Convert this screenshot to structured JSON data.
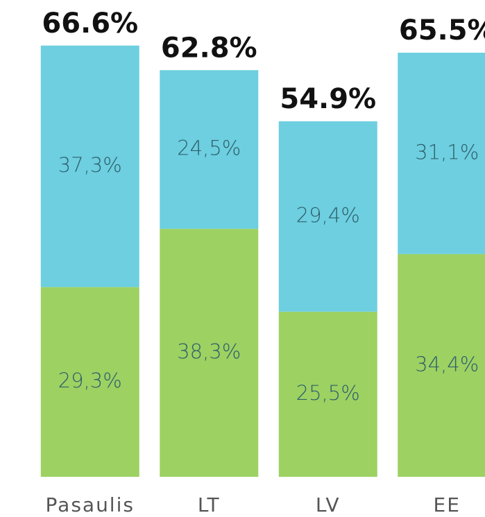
{
  "chart_data": {
    "type": "stacked_bar",
    "categories": [
      "Pasaulis",
      "LT",
      "LV",
      "EE"
    ],
    "series": [
      {
        "color": "#9dd162",
        "values": [
          29.3,
          38.3,
          25.5,
          34.4
        ],
        "value_labels": [
          "29,3%",
          "38,3%",
          "25,5%",
          "34,4%"
        ]
      },
      {
        "color": "#6dcfe0",
        "values": [
          37.3,
          24.5,
          29.4,
          31.1
        ],
        "value_labels": [
          "37,3%",
          "24,5%",
          "29,4%",
          "31,1%"
        ]
      }
    ],
    "totals": [
      66.6,
      62.8,
      54.9,
      65.5
    ],
    "total_labels": [
      "66.6%",
      "62.8%",
      "54.9%",
      "65.5%"
    ],
    "ylim": [
      0,
      70
    ]
  }
}
